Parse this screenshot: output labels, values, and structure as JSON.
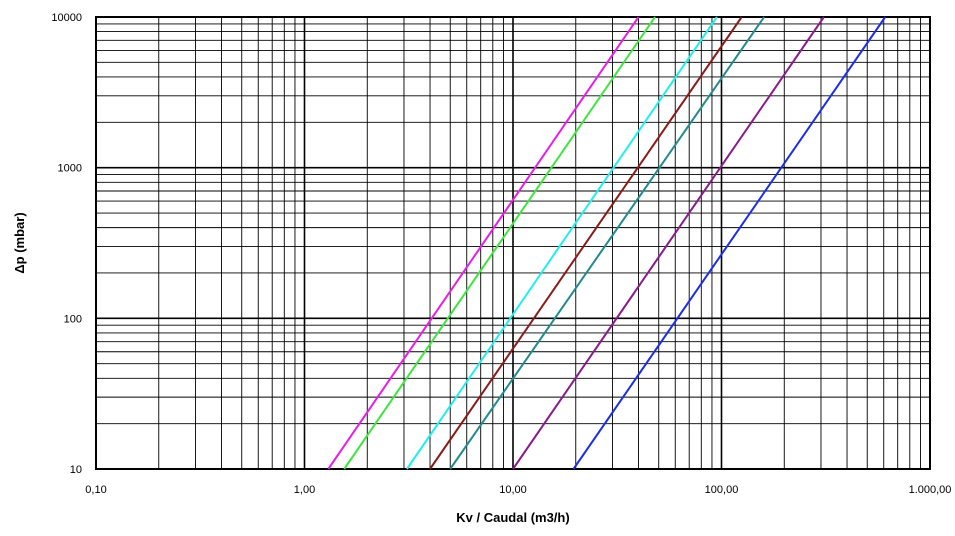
{
  "chart_data": {
    "type": "line",
    "title": "",
    "xlabel": "Kv / Caudal (m3/h)",
    "ylabel": "Δp (mbar)",
    "x_scale": "log",
    "y_scale": "log",
    "xlim": [
      0.1,
      1000
    ],
    "ylim": [
      10,
      10000
    ],
    "x_ticks": [
      {
        "value": 0.1,
        "label": "0,10"
      },
      {
        "value": 1,
        "label": "1,00"
      },
      {
        "value": 10,
        "label": "10,00"
      },
      {
        "value": 100,
        "label": "100,00"
      },
      {
        "value": 1000,
        "label": "1.000,00"
      }
    ],
    "y_ticks": [
      {
        "value": 10,
        "label": "10"
      },
      {
        "value": 100,
        "label": "100"
      },
      {
        "value": 1000,
        "label": "1000"
      },
      {
        "value": 10000,
        "label": "10000"
      }
    ],
    "grid": true,
    "legend": "none",
    "series": [
      {
        "color": "#e81ee8",
        "x": [
          1.3,
          40
        ],
        "y": [
          10,
          10000
        ]
      },
      {
        "color": "#3ee63e",
        "x": [
          1.55,
          48
        ],
        "y": [
          10,
          10000
        ]
      },
      {
        "color": "#22eeee",
        "x": [
          3.1,
          95
        ],
        "y": [
          10,
          10000
        ]
      },
      {
        "color": "#8b1a1a",
        "x": [
          4.0,
          125
        ],
        "y": [
          10,
          10000
        ]
      },
      {
        "color": "#228b8b",
        "x": [
          5.0,
          160
        ],
        "y": [
          10,
          10000
        ]
      },
      {
        "color": "#8b1a8b",
        "x": [
          10.0,
          310
        ],
        "y": [
          10,
          10000
        ]
      },
      {
        "color": "#1e2ee6",
        "x": [
          19.5,
          610
        ],
        "y": [
          10,
          10000
        ]
      }
    ]
  }
}
